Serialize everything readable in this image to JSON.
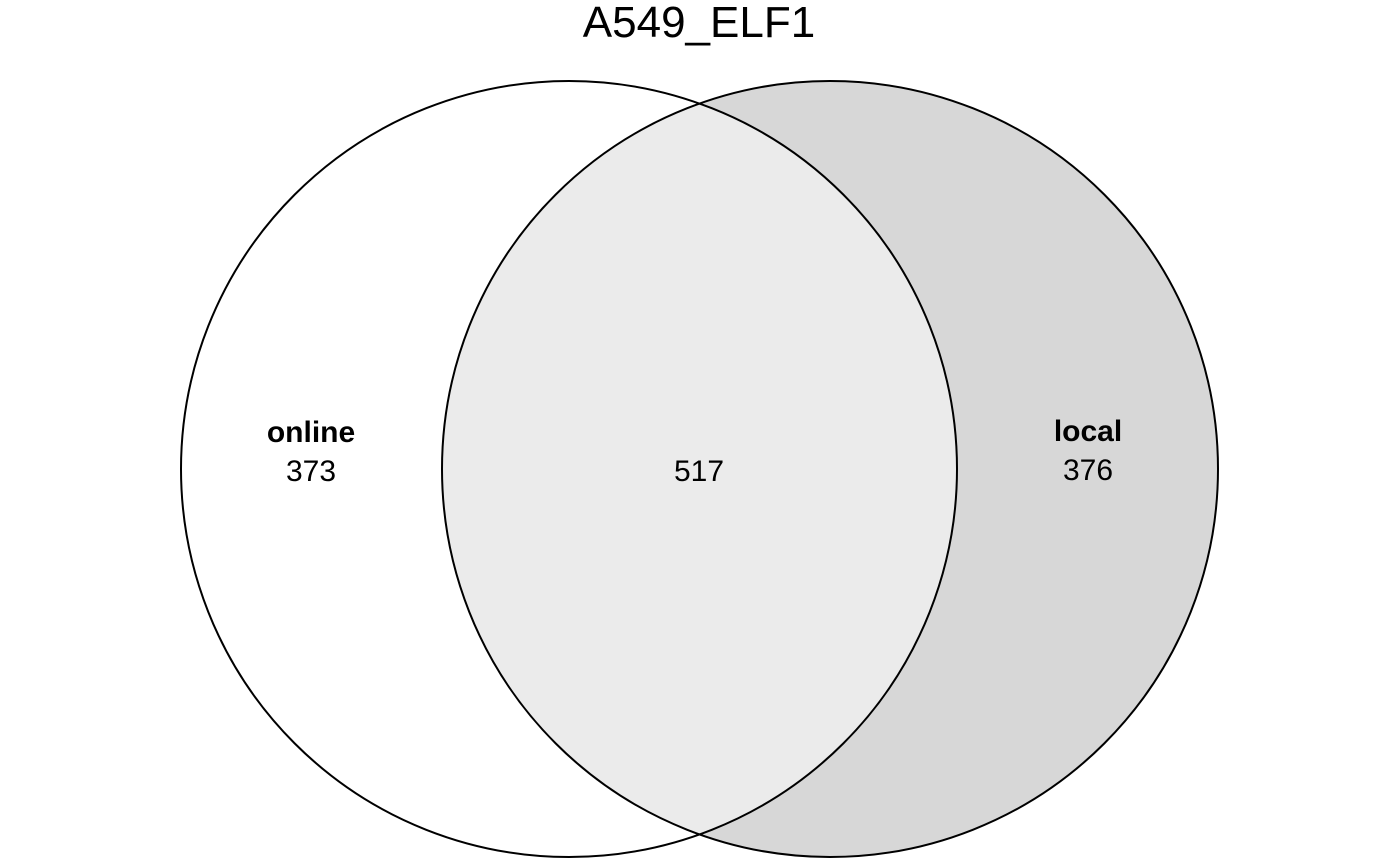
{
  "title": "A549_ELF1",
  "sets": [
    {
      "name": "online",
      "only_count": "373"
    },
    {
      "name": "local",
      "only_count": "376"
    }
  ],
  "intersection_count": "517",
  "colors": {
    "online_only": "#ffffff",
    "intersection": "#ebebeb",
    "local_only": "#d7d7d7",
    "outline": "#000000"
  }
}
